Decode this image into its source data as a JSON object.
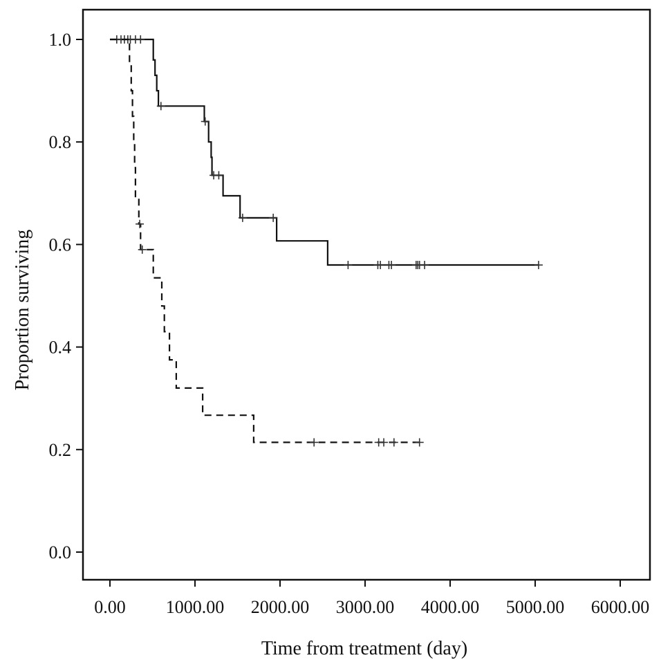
{
  "chart_data": {
    "type": "line",
    "subtype": "kaplan-meier",
    "title": "",
    "xlabel": "Time from treatment (day)",
    "ylabel": "Proportion surviving",
    "xlim": [
      -200,
      6200
    ],
    "ylim": [
      -0.05,
      1.06
    ],
    "x_ticks": [
      0,
      1000,
      2000,
      3000,
      4000,
      5000,
      6000
    ],
    "x_tick_labels": [
      "0.00",
      "1000.00",
      "2000.00",
      "3000.00",
      "4000.00",
      "5000.00",
      "6000.00"
    ],
    "y_ticks": [
      0.0,
      0.2,
      0.4,
      0.6,
      0.8,
      1.0
    ],
    "y_tick_labels": [
      "0.0",
      "0.2",
      "0.4",
      "0.6",
      "0.8",
      "1.0"
    ],
    "grid": false,
    "series": [
      {
        "line_style": "solid",
        "steps": [
          [
            0,
            1.0
          ],
          [
            510,
            1.0
          ],
          [
            510,
            0.96
          ],
          [
            530,
            0.96
          ],
          [
            530,
            0.93
          ],
          [
            550,
            0.93
          ],
          [
            550,
            0.9
          ],
          [
            570,
            0.9
          ],
          [
            570,
            0.87
          ],
          [
            1110,
            0.87
          ],
          [
            1110,
            0.84
          ],
          [
            1160,
            0.84
          ],
          [
            1160,
            0.8
          ],
          [
            1190,
            0.8
          ],
          [
            1190,
            0.77
          ],
          [
            1200,
            0.77
          ],
          [
            1200,
            0.735
          ],
          [
            1330,
            0.735
          ],
          [
            1330,
            0.695
          ],
          [
            1530,
            0.695
          ],
          [
            1530,
            0.652
          ],
          [
            1960,
            0.652
          ],
          [
            1960,
            0.607
          ],
          [
            2560,
            0.607
          ],
          [
            2560,
            0.56
          ],
          [
            5040,
            0.56
          ]
        ],
        "censored": [
          [
            80,
            1.0
          ],
          [
            130,
            1.0
          ],
          [
            170,
            1.0
          ],
          [
            210,
            1.0
          ],
          [
            240,
            1.0
          ],
          [
            300,
            1.0
          ],
          [
            360,
            1.0
          ],
          [
            600,
            0.87
          ],
          [
            1120,
            0.84
          ],
          [
            1220,
            0.735
          ],
          [
            1280,
            0.735
          ],
          [
            1560,
            0.652
          ],
          [
            1920,
            0.652
          ],
          [
            2800,
            0.56
          ],
          [
            3150,
            0.56
          ],
          [
            3180,
            0.56
          ],
          [
            3280,
            0.56
          ],
          [
            3310,
            0.56
          ],
          [
            3600,
            0.56
          ],
          [
            3620,
            0.56
          ],
          [
            3640,
            0.56
          ],
          [
            3700,
            0.56
          ],
          [
            5040,
            0.56
          ]
        ]
      },
      {
        "line_style": "dashed",
        "steps": [
          [
            0,
            1.0
          ],
          [
            230,
            1.0
          ],
          [
            230,
            0.95
          ],
          [
            250,
            0.95
          ],
          [
            250,
            0.9
          ],
          [
            265,
            0.9
          ],
          [
            265,
            0.85
          ],
          [
            280,
            0.85
          ],
          [
            280,
            0.8
          ],
          [
            290,
            0.8
          ],
          [
            290,
            0.75
          ],
          [
            300,
            0.75
          ],
          [
            300,
            0.69
          ],
          [
            340,
            0.69
          ],
          [
            340,
            0.64
          ],
          [
            360,
            0.64
          ],
          [
            360,
            0.59
          ],
          [
            510,
            0.59
          ],
          [
            510,
            0.535
          ],
          [
            610,
            0.535
          ],
          [
            610,
            0.48
          ],
          [
            640,
            0.48
          ],
          [
            640,
            0.43
          ],
          [
            700,
            0.43
          ],
          [
            700,
            0.375
          ],
          [
            780,
            0.375
          ],
          [
            780,
            0.32
          ],
          [
            1090,
            0.32
          ],
          [
            1090,
            0.267
          ],
          [
            1690,
            0.267
          ],
          [
            1690,
            0.214
          ],
          [
            3640,
            0.214
          ]
        ],
        "censored": [
          [
            350,
            0.64
          ],
          [
            380,
            0.59
          ],
          [
            2400,
            0.214
          ],
          [
            3160,
            0.214
          ],
          [
            3220,
            0.214
          ],
          [
            3340,
            0.214
          ],
          [
            3640,
            0.214
          ]
        ]
      }
    ]
  }
}
